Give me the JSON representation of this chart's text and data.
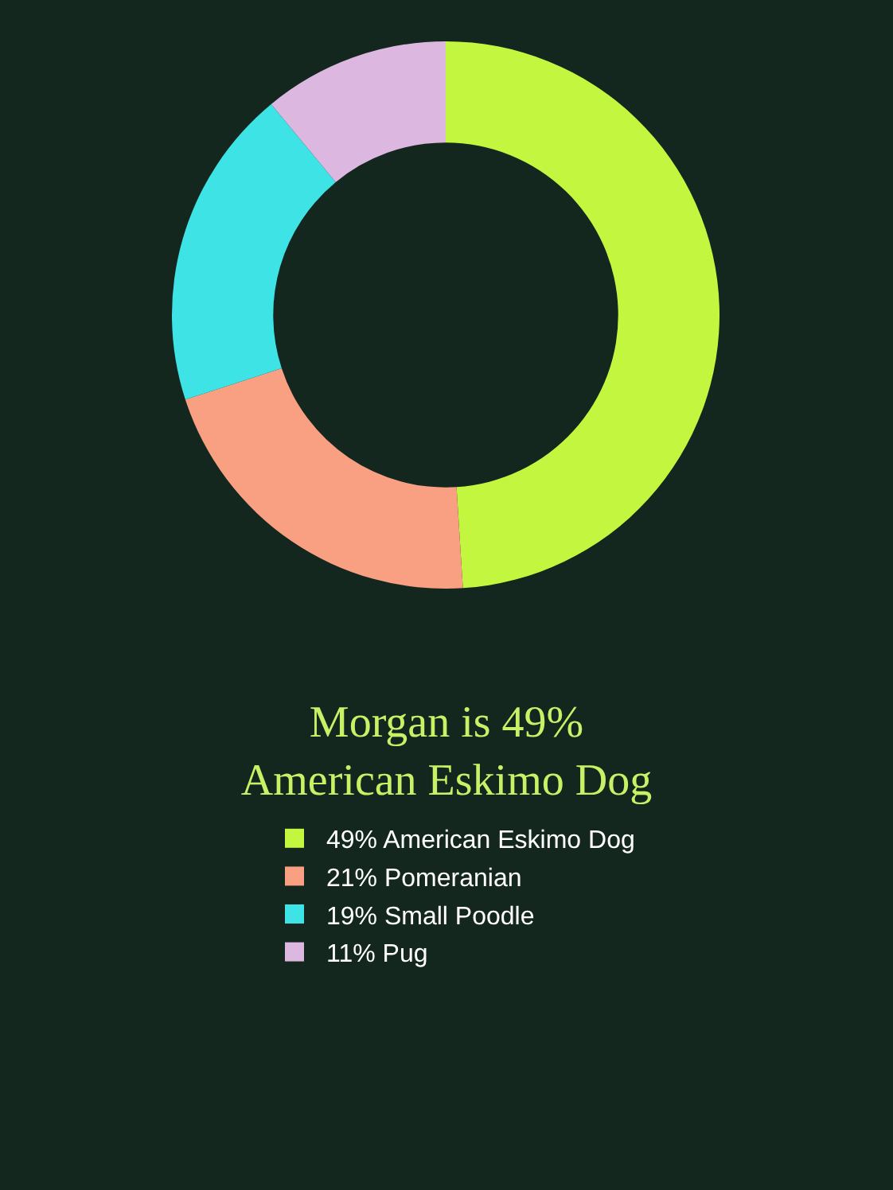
{
  "chart_data": {
    "type": "donut",
    "title": "Morgan is 49%\nAmerican Eskimo Dog",
    "categories": [
      "American Eskimo Dog",
      "Pomeranian",
      "Small Poodle",
      "Pug"
    ],
    "values": [
      49,
      21,
      19,
      11
    ],
    "colors": [
      "#c3f73f",
      "#f9a083",
      "#3ee3e6",
      "#dcb8e0"
    ],
    "value_labels": [
      "49%",
      "21%",
      "19%",
      "11%"
    ],
    "legend": "bottom"
  }
}
